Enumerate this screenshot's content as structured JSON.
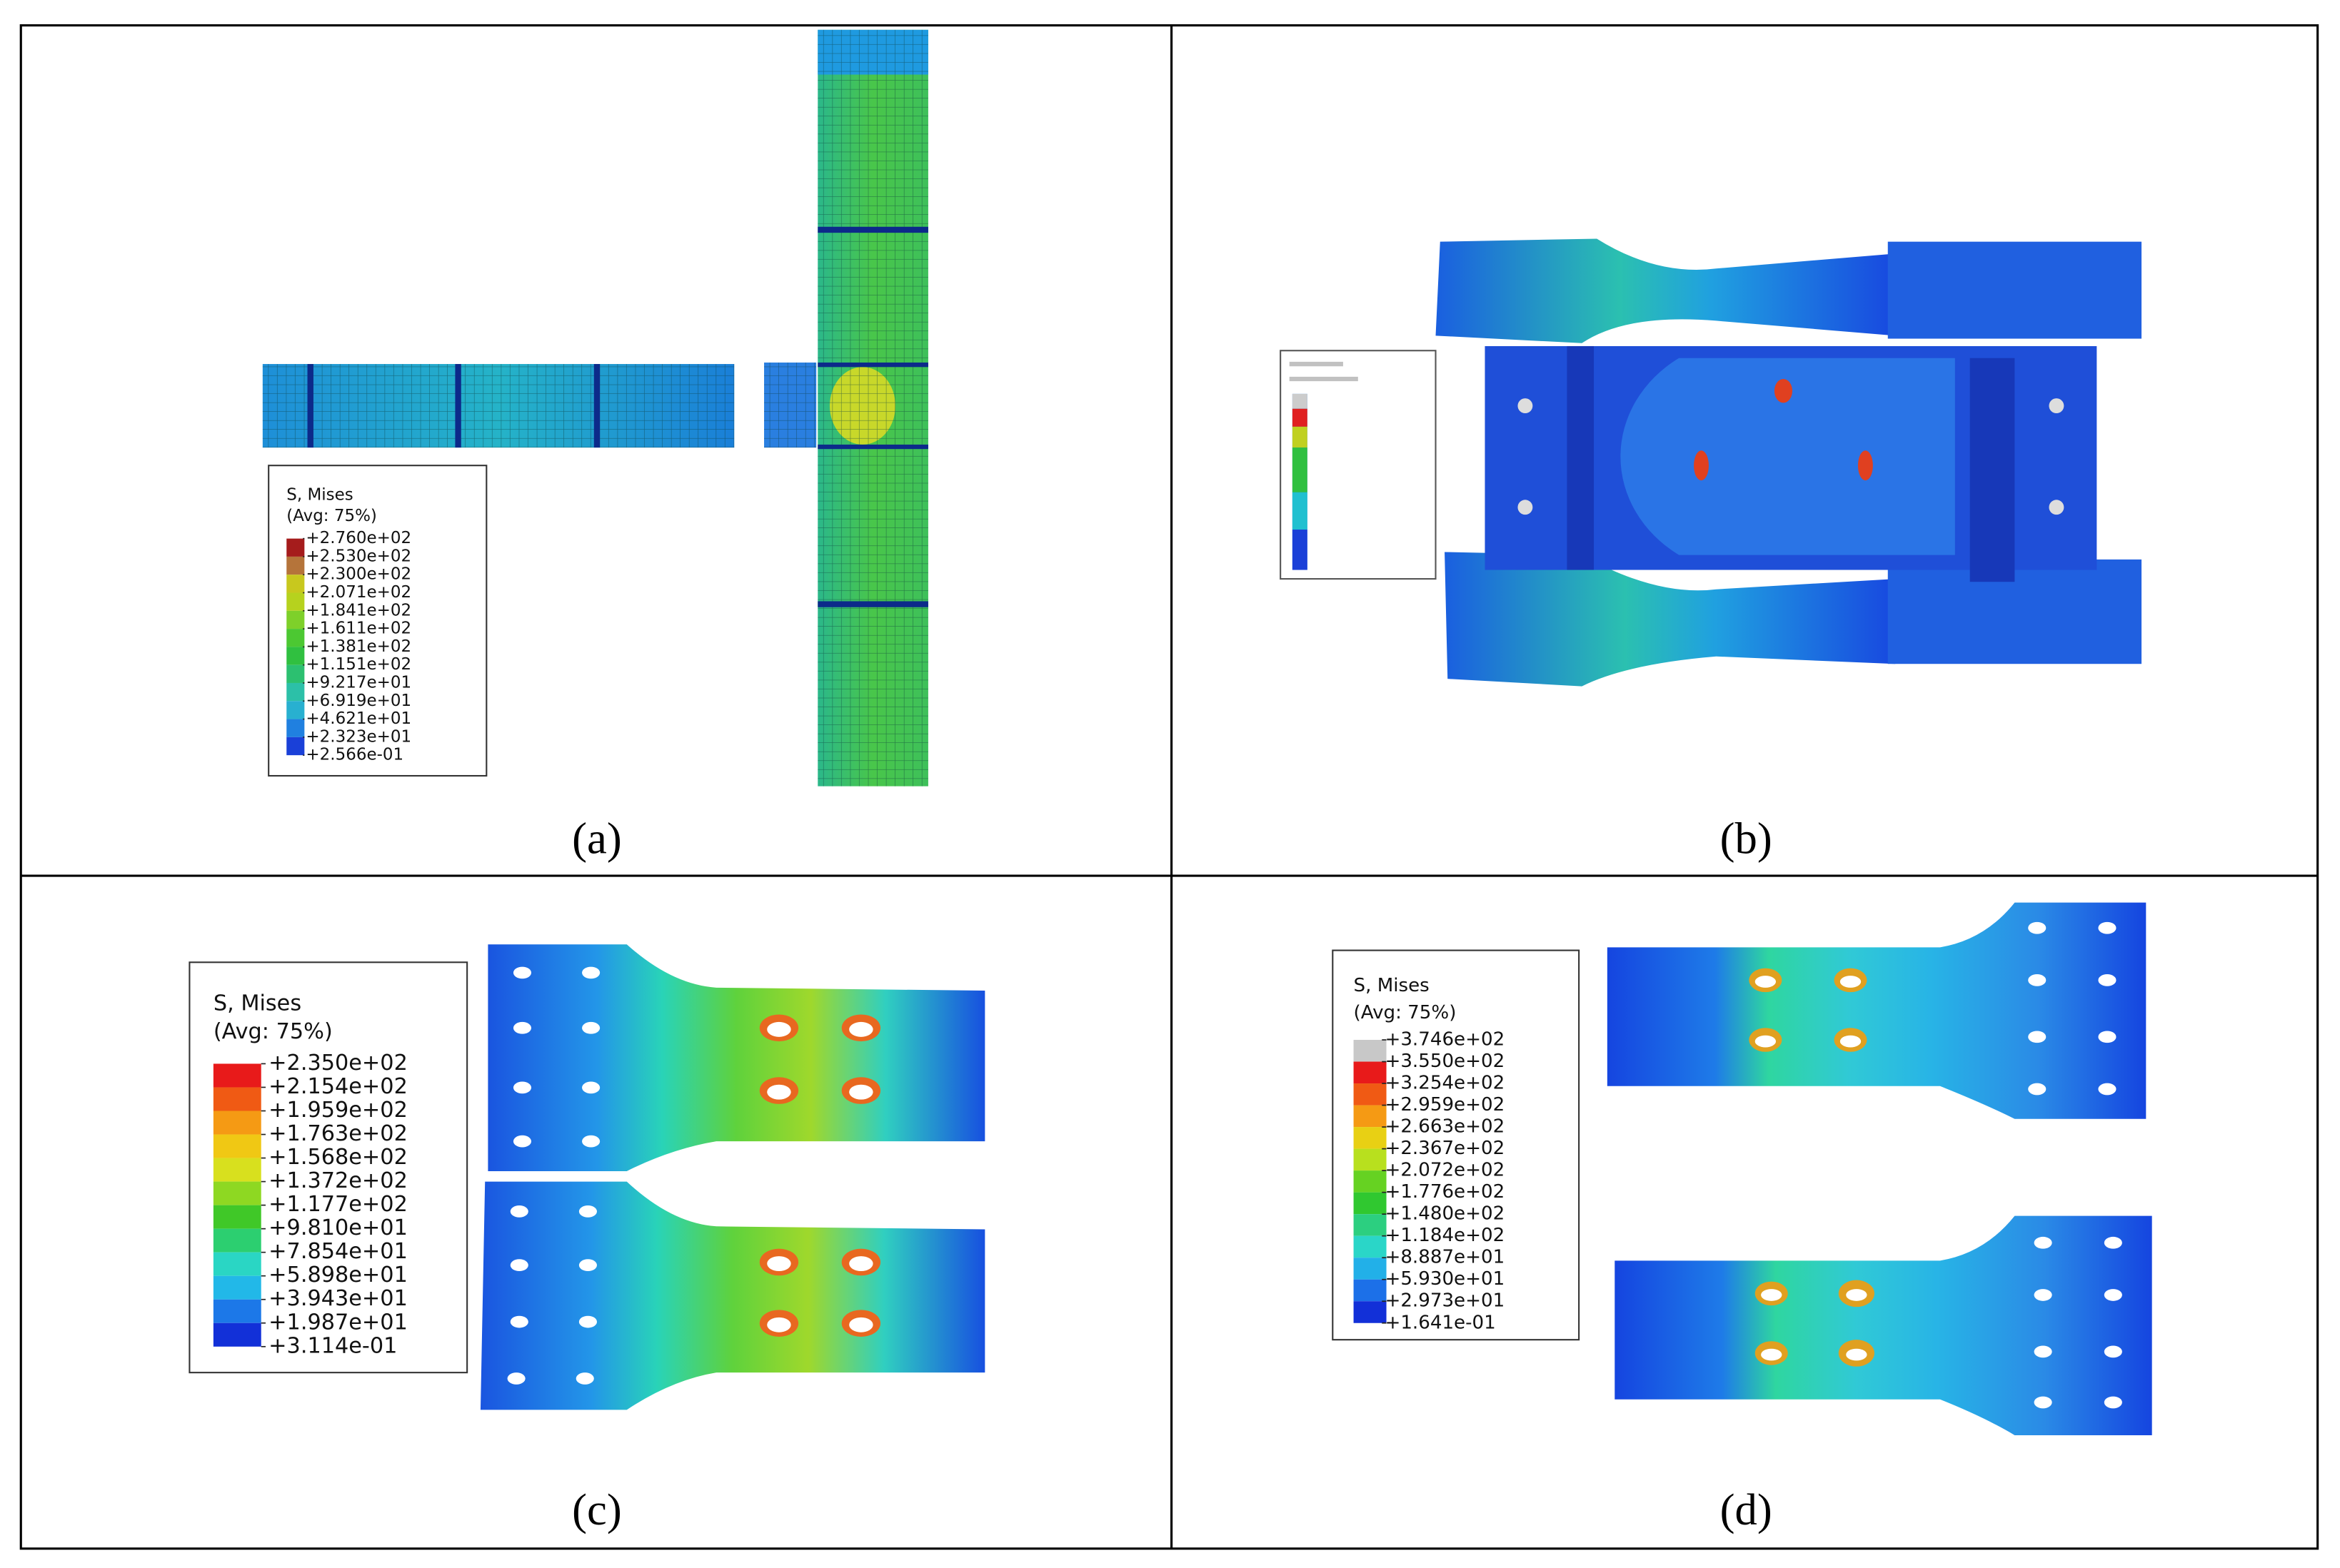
{
  "panels": [
    {
      "label": "(a)",
      "legend": {
        "title": "S, Mises",
        "subtitle": "(Avg: 75%)",
        "values": [
          "+2.760e+02",
          "+2.530e+02",
          "+2.300e+02",
          "+2.071e+02",
          "+1.841e+02",
          "+1.611e+02",
          "+1.381e+02",
          "+1.151e+02",
          "+9.217e+01",
          "+6.919e+01",
          "+4.621e+01",
          "+2.323e+01",
          "+2.566e-01"
        ]
      }
    },
    {
      "label": "(b)"
    },
    {
      "label": "(c)",
      "legend": {
        "title": "S, Mises",
        "subtitle": "(Avg: 75%)",
        "values": [
          "+2.350e+02",
          "+2.154e+02",
          "+1.959e+02",
          "+1.763e+02",
          "+1.568e+02",
          "+1.372e+02",
          "+1.177e+02",
          "+9.810e+01",
          "+7.854e+01",
          "+5.898e+01",
          "+3.943e+01",
          "+1.987e+01",
          "+3.114e-01"
        ]
      }
    },
    {
      "label": "(d)",
      "legend": {
        "title": "S, Mises",
        "subtitle": "(Avg: 75%)",
        "values": [
          "+3.746e+02",
          "+3.550e+02",
          "+3.254e+02",
          "+2.959e+02",
          "+2.663e+02",
          "+2.367e+02",
          "+2.072e+02",
          "+1.776e+02",
          "+1.480e+02",
          "+1.184e+02",
          "+8.887e+01",
          "+5.930e+01",
          "+2.973e+01",
          "+1.641e-01"
        ]
      }
    }
  ]
}
